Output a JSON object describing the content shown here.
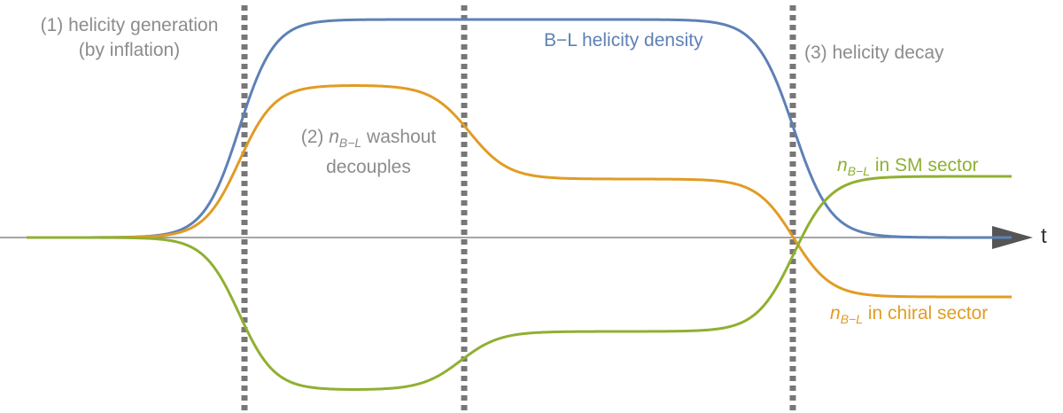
{
  "axis": {
    "label": "t"
  },
  "phases": [
    {
      "line1": "(1) helicity generation",
      "line2": "(by inflation)"
    },
    {
      "prefix": "(2) ",
      "symbol": "n",
      "subscript": "B−L",
      "suffix": " washout",
      "line2": "decouples"
    },
    {
      "text": "(3) helicity decay"
    }
  ],
  "curves": {
    "blue": {
      "text": "B−L helicity density",
      "color": "#5e81b5"
    },
    "orange": {
      "symbol": "n",
      "subscript": "B−L",
      "suffix": " in chiral sector",
      "color": "#e19c24"
    },
    "green": {
      "symbol": "n",
      "subscript": "B−L",
      "suffix": " in SM sector",
      "color": "#8fb032"
    }
  }
}
